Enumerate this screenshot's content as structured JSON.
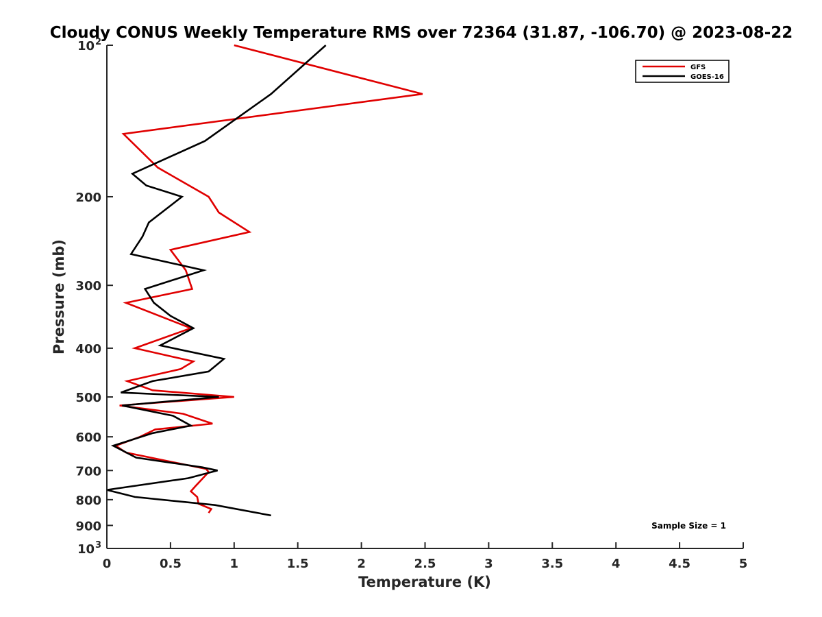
{
  "chart_data": {
    "type": "line",
    "title": "Cloudy CONUS Weekly Temperature RMS over 72364 (31.87, -106.70) @ 2023-08-22",
    "xlabel": "Temperature (K)",
    "ylabel": "Pressure (mb)",
    "xlim": [
      0,
      5
    ],
    "ylim": [
      100,
      1000
    ],
    "y_scale": "log",
    "y_reversed": true,
    "grid": false,
    "x_ticks": [
      "0",
      "0.5",
      "1",
      "1.5",
      "2",
      "2.5",
      "3",
      "3.5",
      "4",
      "4.5",
      "5"
    ],
    "x_tick_values": [
      0,
      0.5,
      1,
      1.5,
      2,
      2.5,
      3,
      3.5,
      4,
      4.5,
      5
    ],
    "y_ticks": [
      {
        "value": 100,
        "label": "10",
        "exp": "2"
      },
      {
        "value": 200,
        "label": "200"
      },
      {
        "value": 300,
        "label": "300"
      },
      {
        "value": 400,
        "label": "400"
      },
      {
        "value": 500,
        "label": "500"
      },
      {
        "value": 600,
        "label": "600"
      },
      {
        "value": 700,
        "label": "700"
      },
      {
        "value": 800,
        "label": "800"
      },
      {
        "value": 900,
        "label": "900"
      },
      {
        "value": 1000,
        "label": "10",
        "exp": "3"
      }
    ],
    "legend_position": "top-right",
    "annotation": "Sample Size = 1",
    "series": [
      {
        "name": "GFS",
        "color": "#e00000",
        "points": [
          [
            1.0,
            100
          ],
          [
            2.48,
            125
          ],
          [
            0.13,
            150
          ],
          [
            0.4,
            175
          ],
          [
            0.8,
            200
          ],
          [
            0.88,
            215
          ],
          [
            1.12,
            235
          ],
          [
            0.5,
            255
          ],
          [
            0.62,
            280
          ],
          [
            0.67,
            305
          ],
          [
            0.15,
            325
          ],
          [
            0.66,
            365
          ],
          [
            0.22,
            400
          ],
          [
            0.68,
            425
          ],
          [
            0.58,
            440
          ],
          [
            0.16,
            465
          ],
          [
            0.36,
            485
          ],
          [
            1.0,
            500
          ],
          [
            0.1,
            520
          ],
          [
            0.6,
            540
          ],
          [
            0.83,
            565
          ],
          [
            0.38,
            580
          ],
          [
            0.26,
            600
          ],
          [
            0.07,
            625
          ],
          [
            0.15,
            645
          ],
          [
            0.78,
            695
          ],
          [
            0.8,
            705
          ],
          [
            0.7,
            750
          ],
          [
            0.66,
            770
          ],
          [
            0.71,
            790
          ],
          [
            0.72,
            815
          ],
          [
            0.82,
            835
          ],
          [
            0.8,
            850
          ]
        ]
      },
      {
        "name": "GOES-16",
        "color": "#000000",
        "points": [
          [
            1.72,
            100
          ],
          [
            1.29,
            125
          ],
          [
            0.77,
            155
          ],
          [
            0.2,
            180
          ],
          [
            0.31,
            190
          ],
          [
            0.59,
            200
          ],
          [
            0.33,
            225
          ],
          [
            0.28,
            240
          ],
          [
            0.19,
            260
          ],
          [
            0.76,
            280
          ],
          [
            0.3,
            305
          ],
          [
            0.37,
            325
          ],
          [
            0.5,
            345
          ],
          [
            0.68,
            365
          ],
          [
            0.42,
            395
          ],
          [
            0.92,
            420
          ],
          [
            0.8,
            445
          ],
          [
            0.36,
            465
          ],
          [
            0.11,
            490
          ],
          [
            0.88,
            500
          ],
          [
            0.12,
            520
          ],
          [
            0.52,
            545
          ],
          [
            0.66,
            570
          ],
          [
            0.36,
            590
          ],
          [
            0.05,
            625
          ],
          [
            0.23,
            660
          ],
          [
            0.75,
            690
          ],
          [
            0.87,
            700
          ],
          [
            0.64,
            725
          ],
          [
            0.0,
            765
          ],
          [
            0.22,
            790
          ],
          [
            0.85,
            820
          ],
          [
            1.29,
            860
          ]
        ]
      }
    ]
  }
}
